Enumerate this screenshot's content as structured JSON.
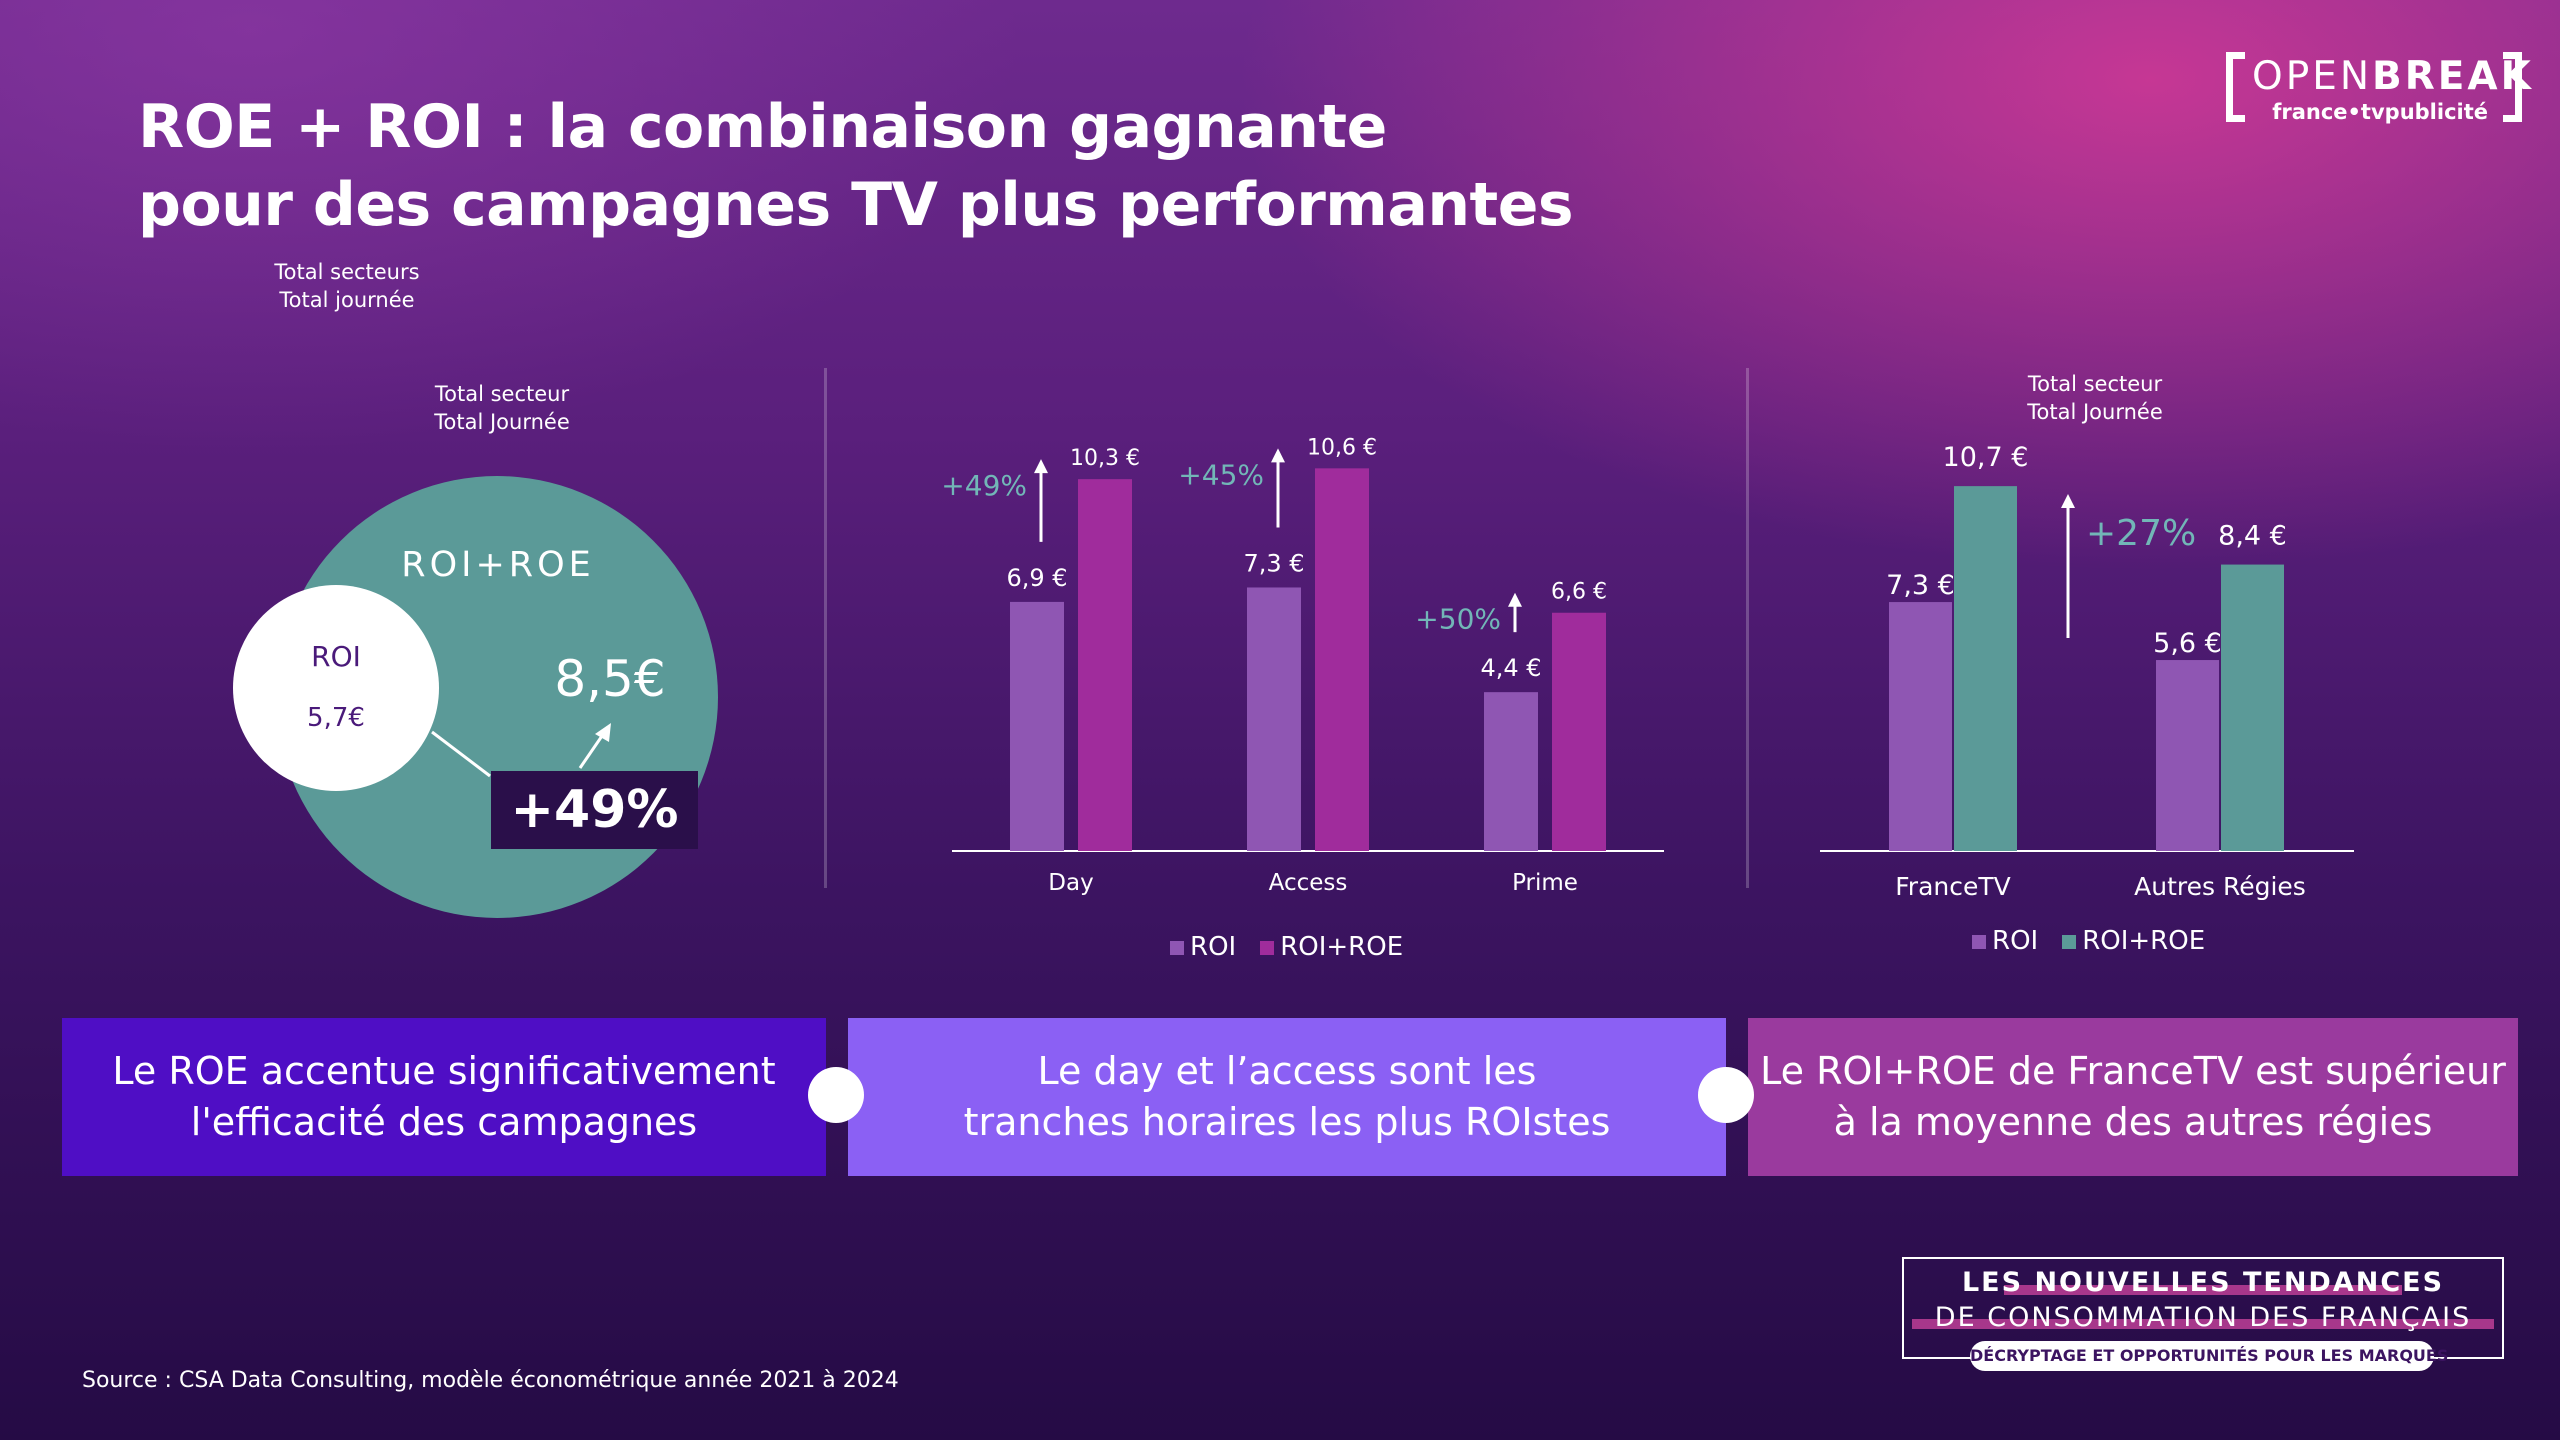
{
  "title": {
    "line1": "ROE + ROI : la combinaison gagnante",
    "line2": "pour des campagnes TV plus performantes"
  },
  "logo": {
    "word_light": "OPEN",
    "word_bold": "BREAK",
    "sub": "france•tvpublicité"
  },
  "colors": {
    "roi": "#8f56b3",
    "roi_roe_purple": "#a02c9c",
    "roi_roe_teal": "#5b9a98",
    "growth_text": "#72b6b7",
    "box1": "#4f0ec5",
    "box2": "#8b60f4",
    "box3": "#9a3a9e"
  },
  "venn": {
    "label_left_1": "Total secteurs",
    "label_left_2": "Total journée",
    "label_top_1": "Total secteur",
    "label_top_2": "Total Journée",
    "big_label": "ROI+ROE",
    "big_value": "8,5€",
    "small_label": "ROI",
    "small_value": "5,7€",
    "pct": "+49%"
  },
  "chart_data": [
    {
      "type": "bar",
      "categories": [
        "Day",
        "Access",
        "Prime"
      ],
      "series": [
        {
          "name": "ROI",
          "values": [
            6.9,
            7.3,
            4.4
          ]
        },
        {
          "name": "ROI+ROE",
          "values": [
            10.3,
            10.6,
            6.6
          ]
        }
      ],
      "value_labels": {
        "ROI": [
          "6,9 €",
          "7,3 €",
          "4,4 €"
        ],
        "ROI+ROE": [
          "10,3 €",
          "10,6 €",
          "6,6 €"
        ]
      },
      "growth": [
        "+49%",
        "+45%",
        "+50%"
      ],
      "ylim": [
        0,
        10.6
      ],
      "legend": "bottom"
    },
    {
      "type": "bar",
      "title_1": "Total secteur",
      "title_2": "Total Journée",
      "categories": [
        "FranceTV",
        "Autres Régies"
      ],
      "series": [
        {
          "name": "ROI",
          "values": [
            7.3,
            5.6
          ]
        },
        {
          "name": "ROI+ROE",
          "values": [
            10.7,
            8.4
          ]
        }
      ],
      "value_labels": {
        "ROI": [
          "7,3 €",
          "5,6 €"
        ],
        "ROI+ROE": [
          "10,7 €",
          "8,4 €"
        ]
      },
      "growth": [
        "+27%"
      ],
      "ylim": [
        0,
        10.7
      ],
      "legend": "bottom"
    }
  ],
  "boxes": [
    {
      "line1": "Le ROE accentue significativement",
      "line2": "l'efficacité des campagnes"
    },
    {
      "line1": "Le day et l’access sont les",
      "line2": "tranches horaires les plus ROIstes"
    },
    {
      "line1": "Le ROI+ROE de FranceTV est supérieur",
      "line2": "à la moyenne des autres régies"
    }
  ],
  "badge": {
    "line1": "LES NOUVELLES TENDANCES",
    "line2": "DE CONSOMMATION DES FRANÇAIS",
    "line3": "DÉCRYPTAGE ET OPPORTUNITÉS POUR LES MARQUES"
  },
  "source": "Source : CSA Data Consulting, modèle économétrique année 2021 à 2024"
}
